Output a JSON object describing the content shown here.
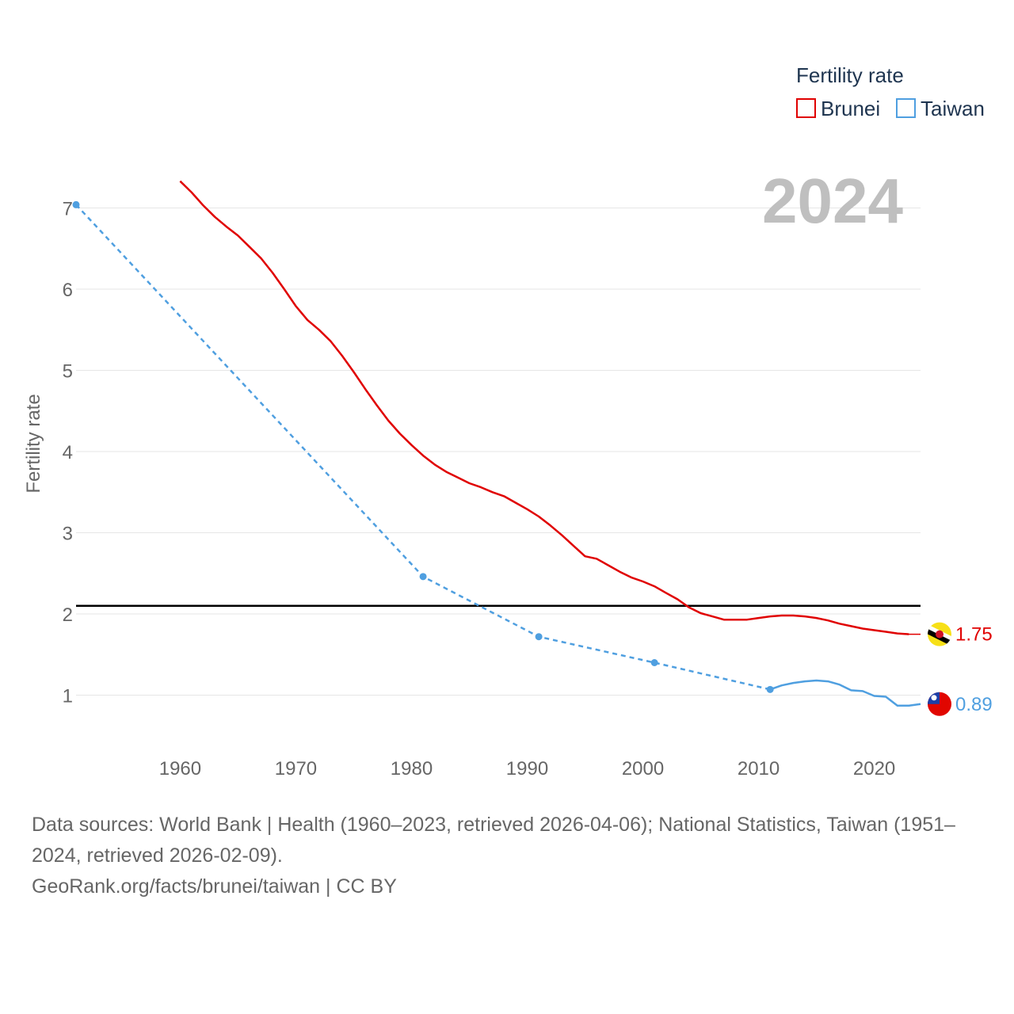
{
  "chart_data": {
    "type": "line",
    "legend_title": "Fertility rate",
    "legend_position": "top-right",
    "ylabel": "Fertility rate",
    "xlabel": "",
    "year_label": "2024",
    "xlim": [
      1951,
      2024
    ],
    "ylim": [
      0.5,
      7.3
    ],
    "x_ticks": [
      1960,
      1970,
      1980,
      1990,
      2000,
      2010,
      2020
    ],
    "y_ticks": [
      1,
      2,
      3,
      4,
      5,
      6,
      7
    ],
    "reference_line": {
      "value": 2.1,
      "color": "#000000"
    },
    "series": [
      {
        "name": "Brunei",
        "color": "#e00000",
        "style": "solid",
        "end_label": "1.75",
        "end_value": 1.75,
        "flag_icon": "brunei-flag-icon",
        "points": [
          [
            1960,
            7.33
          ],
          [
            1961,
            7.19
          ],
          [
            1962,
            7.03
          ],
          [
            1963,
            6.89
          ],
          [
            1964,
            6.77
          ],
          [
            1965,
            6.66
          ],
          [
            1966,
            6.52
          ],
          [
            1967,
            6.38
          ],
          [
            1968,
            6.2
          ],
          [
            1969,
            6.0
          ],
          [
            1970,
            5.79
          ],
          [
            1971,
            5.62
          ],
          [
            1972,
            5.5
          ],
          [
            1973,
            5.36
          ],
          [
            1974,
            5.18
          ],
          [
            1975,
            4.98
          ],
          [
            1976,
            4.77
          ],
          [
            1977,
            4.57
          ],
          [
            1978,
            4.38
          ],
          [
            1979,
            4.22
          ],
          [
            1980,
            4.08
          ],
          [
            1981,
            3.95
          ],
          [
            1982,
            3.84
          ],
          [
            1983,
            3.75
          ],
          [
            1984,
            3.68
          ],
          [
            1985,
            3.61
          ],
          [
            1986,
            3.56
          ],
          [
            1987,
            3.5
          ],
          [
            1988,
            3.45
          ],
          [
            1989,
            3.37
          ],
          [
            1990,
            3.29
          ],
          [
            1991,
            3.2
          ],
          [
            1992,
            3.09
          ],
          [
            1993,
            2.97
          ],
          [
            1994,
            2.84
          ],
          [
            1995,
            2.71
          ],
          [
            1996,
            2.68
          ],
          [
            1997,
            2.6
          ],
          [
            1998,
            2.52
          ],
          [
            1999,
            2.45
          ],
          [
            2000,
            2.4
          ],
          [
            2001,
            2.34
          ],
          [
            2002,
            2.26
          ],
          [
            2003,
            2.18
          ],
          [
            2004,
            2.08
          ],
          [
            2005,
            2.01
          ],
          [
            2006,
            1.97
          ],
          [
            2007,
            1.93
          ],
          [
            2008,
            1.93
          ],
          [
            2009,
            1.93
          ],
          [
            2010,
            1.95
          ],
          [
            2011,
            1.97
          ],
          [
            2012,
            1.98
          ],
          [
            2013,
            1.98
          ],
          [
            2014,
            1.97
          ],
          [
            2015,
            1.95
          ],
          [
            2016,
            1.92
          ],
          [
            2017,
            1.88
          ],
          [
            2018,
            1.85
          ],
          [
            2019,
            1.82
          ],
          [
            2020,
            1.8
          ],
          [
            2021,
            1.78
          ],
          [
            2022,
            1.76
          ],
          [
            2023,
            1.75
          ]
        ]
      },
      {
        "name": "Taiwan",
        "color": "#4f9fe0",
        "style": "dashed-then-solid",
        "end_label": "0.89",
        "end_value": 0.89,
        "flag_icon": "taiwan-flag-icon",
        "survey_points": [
          [
            1951,
            7.04
          ],
          [
            1981,
            2.46
          ],
          [
            1991,
            1.72
          ],
          [
            2001,
            1.4
          ],
          [
            2011,
            1.07
          ]
        ],
        "annual_points": [
          [
            2011,
            1.07
          ],
          [
            2012,
            1.12
          ],
          [
            2013,
            1.15
          ],
          [
            2014,
            1.17
          ],
          [
            2015,
            1.18
          ],
          [
            2016,
            1.17
          ],
          [
            2017,
            1.13
          ],
          [
            2018,
            1.06
          ],
          [
            2019,
            1.05
          ],
          [
            2020,
            0.99
          ],
          [
            2021,
            0.98
          ],
          [
            2022,
            0.87
          ],
          [
            2023,
            0.87
          ],
          [
            2024,
            0.89
          ]
        ]
      }
    ]
  },
  "footer": {
    "sources_line": "Data sources: World Bank | Health (1960–2023, retrieved 2026-04-06); National Statistics, Taiwan (1951–2024, retrieved 2026-02-09).",
    "credit_line": "GeoRank.org/facts/brunei/taiwan | CC BY"
  }
}
